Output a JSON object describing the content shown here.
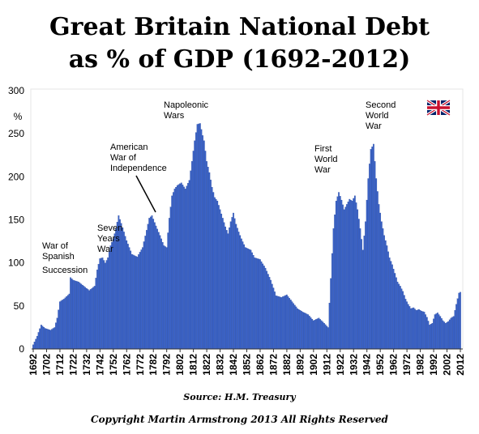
{
  "page": {
    "title_line1": "Great Britain National Debt",
    "title_line2": "as % of GDP (1692-2012)",
    "source": "Source: H.M. Treasury",
    "copyright": "Copyright Martin Armstrong 2013 All Rights Reserved",
    "flag_icon": "union-jack-flag-icon"
  },
  "colors": {
    "bar": "#3a62c8",
    "bar_edge": "#1f3f8f",
    "plot_bg": "#ffffff",
    "grid": "#c8c8c8",
    "frame": "#e6e6e6"
  },
  "chart_data": {
    "type": "bar",
    "title": "Great Britain National Debt as % of GDP (1692-2012)",
    "ylabel": "%",
    "xlabel": "",
    "ylim": [
      0,
      300
    ],
    "yticks": [
      0,
      50,
      100,
      150,
      200,
      250,
      300
    ],
    "xticks": [
      "1692",
      "1702",
      "1712",
      "1722",
      "1732",
      "1742",
      "1752",
      "1762",
      "1772",
      "1782",
      "1792",
      "1802",
      "1812",
      "1822",
      "1832",
      "1842",
      "1852",
      "1862",
      "1872",
      "1882",
      "1892",
      "1902",
      "1912",
      "1922",
      "1932",
      "1942",
      "1952",
      "1962",
      "1972",
      "1982",
      "1992",
      "2002",
      "2012"
    ],
    "grid": false,
    "anchors": [
      [
        1692,
        5
      ],
      [
        1695,
        15
      ],
      [
        1698,
        28
      ],
      [
        1701,
        24
      ],
      [
        1705,
        22
      ],
      [
        1708,
        25
      ],
      [
        1710,
        36
      ],
      [
        1712,
        55
      ],
      [
        1715,
        58
      ],
      [
        1719,
        64
      ],
      [
        1720,
        83
      ],
      [
        1722,
        80
      ],
      [
        1726,
        78
      ],
      [
        1730,
        73
      ],
      [
        1734,
        68
      ],
      [
        1738,
        73
      ],
      [
        1740,
        92
      ],
      [
        1742,
        105
      ],
      [
        1744,
        106
      ],
      [
        1746,
        100
      ],
      [
        1748,
        106
      ],
      [
        1750,
        120
      ],
      [
        1752,
        128
      ],
      [
        1754,
        140
      ],
      [
        1756,
        155
      ],
      [
        1758,
        146
      ],
      [
        1762,
        126
      ],
      [
        1766,
        110
      ],
      [
        1770,
        107
      ],
      [
        1774,
        118
      ],
      [
        1777,
        138
      ],
      [
        1779,
        152
      ],
      [
        1781,
        155
      ],
      [
        1784,
        143
      ],
      [
        1787,
        132
      ],
      [
        1790,
        120
      ],
      [
        1792,
        118
      ],
      [
        1794,
        152
      ],
      [
        1796,
        178
      ],
      [
        1798,
        186
      ],
      [
        1800,
        190
      ],
      [
        1803,
        193
      ],
      [
        1806,
        186
      ],
      [
        1809,
        196
      ],
      [
        1811,
        218
      ],
      [
        1813,
        242
      ],
      [
        1815,
        261
      ],
      [
        1817,
        262
      ],
      [
        1819,
        248
      ],
      [
        1820,
        242
      ],
      [
        1822,
        218
      ],
      [
        1824,
        205
      ],
      [
        1826,
        188
      ],
      [
        1828,
        176
      ],
      [
        1830,
        172
      ],
      [
        1832,
        162
      ],
      [
        1834,
        152
      ],
      [
        1836,
        142
      ],
      [
        1838,
        134
      ],
      [
        1840,
        148
      ],
      [
        1842,
        158
      ],
      [
        1844,
        145
      ],
      [
        1846,
        136
      ],
      [
        1848,
        128
      ],
      [
        1851,
        118
      ],
      [
        1855,
        115
      ],
      [
        1858,
        106
      ],
      [
        1862,
        104
      ],
      [
        1866,
        94
      ],
      [
        1870,
        80
      ],
      [
        1874,
        62
      ],
      [
        1878,
        60
      ],
      [
        1882,
        63
      ],
      [
        1886,
        55
      ],
      [
        1890,
        47
      ],
      [
        1894,
        43
      ],
      [
        1898,
        40
      ],
      [
        1902,
        33
      ],
      [
        1906,
        36
      ],
      [
        1910,
        30
      ],
      [
        1913,
        25
      ],
      [
        1915,
        82
      ],
      [
        1917,
        140
      ],
      [
        1919,
        172
      ],
      [
        1921,
        182
      ],
      [
        1923,
        173
      ],
      [
        1925,
        162
      ],
      [
        1927,
        168
      ],
      [
        1929,
        174
      ],
      [
        1931,
        172
      ],
      [
        1933,
        178
      ],
      [
        1935,
        162
      ],
      [
        1937,
        140
      ],
      [
        1939,
        115
      ],
      [
        1941,
        148
      ],
      [
        1943,
        198
      ],
      [
        1945,
        232
      ],
      [
        1947,
        238
      ],
      [
        1949,
        198
      ],
      [
        1951,
        168
      ],
      [
        1953,
        148
      ],
      [
        1955,
        132
      ],
      [
        1957,
        120
      ],
      [
        1959,
        106
      ],
      [
        1961,
        98
      ],
      [
        1963,
        88
      ],
      [
        1965,
        78
      ],
      [
        1967,
        73
      ],
      [
        1969,
        67
      ],
      [
        1971,
        58
      ],
      [
        1973,
        52
      ],
      [
        1975,
        47
      ],
      [
        1977,
        48
      ],
      [
        1979,
        45
      ],
      [
        1981,
        46
      ],
      [
        1983,
        44
      ],
      [
        1985,
        43
      ],
      [
        1987,
        37
      ],
      [
        1989,
        28
      ],
      [
        1991,
        30
      ],
      [
        1993,
        40
      ],
      [
        1995,
        42
      ],
      [
        1997,
        38
      ],
      [
        1999,
        33
      ],
      [
        2001,
        30
      ],
      [
        2003,
        32
      ],
      [
        2005,
        36
      ],
      [
        2007,
        38
      ],
      [
        2009,
        52
      ],
      [
        2011,
        65
      ],
      [
        2012,
        66
      ]
    ],
    "annotations": [
      {
        "lines": [
          "War of",
          "Spanish"
        ],
        "extra": "Succession"
      },
      {
        "lines": [
          "Seven",
          "Years",
          "War"
        ]
      },
      {
        "lines": [
          "American",
          "War of",
          "Independence"
        ]
      },
      {
        "lines": [
          "Napoleonic",
          "Wars"
        ]
      },
      {
        "lines": [
          "First",
          "World",
          "War"
        ]
      },
      {
        "lines": [
          "Second",
          "World",
          "War"
        ]
      }
    ]
  }
}
